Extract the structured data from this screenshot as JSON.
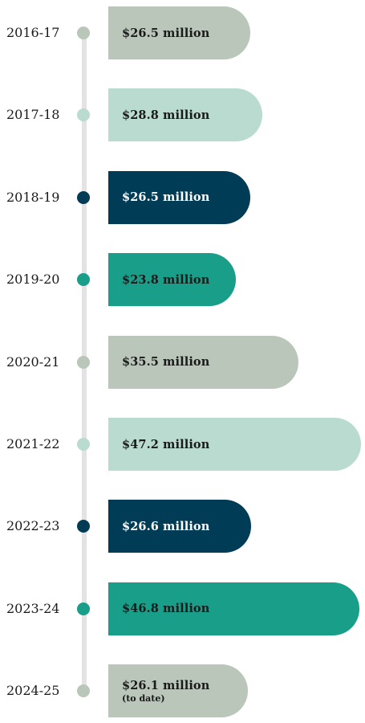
{
  "chart_data": {
    "type": "bar",
    "orientation": "horizontal",
    "title": "",
    "xlabel": "",
    "ylabel": "",
    "unit": "million",
    "xlim": [
      0,
      50
    ],
    "categories": [
      "2016-17",
      "2017-18",
      "2018-19",
      "2019-20",
      "2020-21",
      "2021-22",
      "2022-23",
      "2023-24",
      "2024-25"
    ],
    "values": [
      26.5,
      28.8,
      26.5,
      23.8,
      35.5,
      47.2,
      26.6,
      46.8,
      26.1
    ],
    "labels": [
      "$26.5 million",
      "$28.8 million",
      "$26.5 million",
      "$23.8 million",
      "$35.5 million",
      "$47.2 million",
      "$26.6 million",
      "$46.8 million",
      "$26.1 million"
    ],
    "notes": [
      "",
      "",
      "",
      "",
      "",
      "",
      "",
      "",
      "(to date)"
    ],
    "colors": [
      "#b9c6b9",
      "#badbcf",
      "#003c55",
      "#199e89",
      "#b9c6b9",
      "#badbcf",
      "#003c55",
      "#199e89",
      "#b9c6b9"
    ],
    "label_colors": [
      "#1a1a1a",
      "#1a1a1a",
      "#ffffff",
      "#1a1a1a",
      "#1a1a1a",
      "#1a1a1a",
      "#ffffff",
      "#1a1a1a",
      "#1a1a1a"
    ],
    "timeline_color": "#e3e3e3",
    "grid": false,
    "legend": "none"
  }
}
